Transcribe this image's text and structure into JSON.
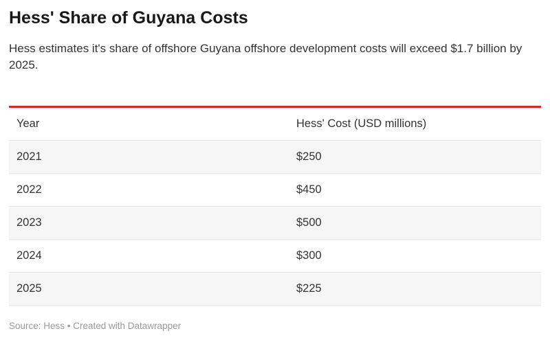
{
  "chart_data": {
    "type": "table",
    "title": "Hess' Share of Guyana Costs",
    "subtitle": "Hess estimates it's share of offshore Guyana offshore development costs will exceed $1.7 billion by 2025.",
    "columns": [
      "Year",
      "Hess' Cost (USD millions)"
    ],
    "rows": [
      [
        "2021",
        "$250"
      ],
      [
        "2022",
        "$450"
      ],
      [
        "2023",
        "$500"
      ],
      [
        "2024",
        "$300"
      ],
      [
        "2025",
        "$225"
      ]
    ],
    "values": [
      250,
      450,
      500,
      300,
      225
    ],
    "footer": "Source: Hess • Created with Datawrapper",
    "accent_color": "#d62828"
  }
}
